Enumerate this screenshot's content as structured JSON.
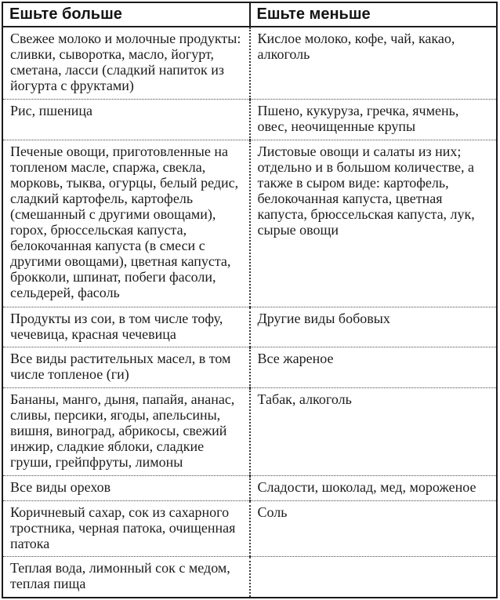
{
  "colors": {
    "background": "#ffffff",
    "text": "#1c1c1c",
    "frame_border": "#1a1a1a"
  },
  "table": {
    "headers": [
      "Ешьте больше",
      "Ешьте меньше"
    ],
    "rows": [
      {
        "more": "Свежее молоко и молочные продукты: сливки, сыворотка, масло, йогурт, сметана, ласси (сладкий напиток из йогурта с фруктами)",
        "less": "Кислое молоко, кофе, чай, какао, алкоголь"
      },
      {
        "more": "Рис, пшеница",
        "less": "Пшено, кукуруза, гречка, ячмень, овес, неочищенные крупы"
      },
      {
        "more": "Печеные овощи, приготовленные на топленом масле, спаржа, свекла, морковь, тыква, огурцы, белый редис, сладкий картофель, картофель (смешанный с другими овощами), горох, брюссельская капуста, белокочанная капуста (в смеси с другими овощами), цветная капуста, брокколи, шпинат, побеги фасоли, сельдерей, фасоль",
        "less": "Листовые овощи и салаты из них; отдельно и в большом количестве, а также в сыром виде: картофель, белокочанная капуста, цветная капуста, брюссельская капуста, лук, сырые овощи"
      },
      {
        "more": "Продукты из сои, в том числе тофу, чечевица, красная чечевица",
        "less": "Другие виды бобовых"
      },
      {
        "more": "Все виды растительных масел, в том числе топленое (ги)",
        "less": "Все жареное"
      },
      {
        "more": "Бананы, манго, дыня, папайя, ананас, сливы, персики, ягоды, апельсины, вишня, виноград, абрикосы, свежий инжир, сладкие яблоки, сладкие груши, грейпфруты, лимоны",
        "less": "Табак, алкоголь"
      },
      {
        "more": "Все виды орехов",
        "less": "Сладости, шоколад, мед, мороженое"
      },
      {
        "more": "Коричневый сахар, сок из сахарного тростника, черная патока, очищенная патока",
        "less": "Соль"
      },
      {
        "more": "Теплая вода, лимонный сок с медом, теплая пища",
        "less": ""
      }
    ]
  }
}
